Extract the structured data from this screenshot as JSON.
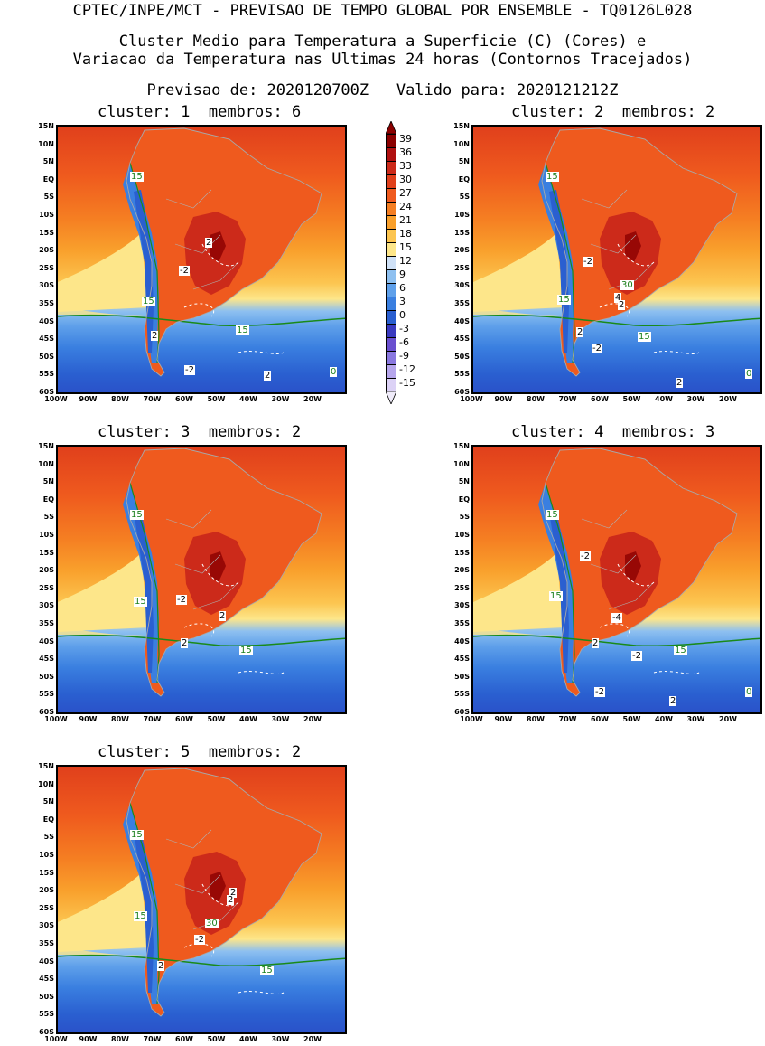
{
  "header": {
    "line1": "CPTEC/INPE/MCT - PREVISAO DE TEMPO GLOBAL POR ENSEMBLE - TQ0126L028",
    "line2": "Cluster Medio para Temperatura a Superficie (C) (Cores) e",
    "line3": "Variacao da Temperatura nas Ultimas 24 horas (Contornos Tracejados)",
    "line4": "Previsao de: 2020120700Z   Valido para: 2020121212Z"
  },
  "axes": {
    "lat_labels": [
      "15N",
      "10N",
      "5N",
      "EQ",
      "5S",
      "10S",
      "15S",
      "20S",
      "25S",
      "30S",
      "35S",
      "40S",
      "45S",
      "50S",
      "55S",
      "60S"
    ],
    "lon_labels": [
      "100W",
      "90W",
      "80W",
      "70W",
      "60W",
      "50W",
      "40W",
      "30W",
      "20W"
    ]
  },
  "colorbar": {
    "labels": [
      "39",
      "36",
      "33",
      "30",
      "27",
      "24",
      "21",
      "18",
      "15",
      "12",
      "9",
      "6",
      "3",
      "0",
      "-3",
      "-6",
      "-9",
      "-12",
      "-15"
    ],
    "colors": [
      "#8b0000",
      "#b01010",
      "#cc2a1a",
      "#e0401c",
      "#ef5a1e",
      "#f57e22",
      "#f9a02c",
      "#fcc550",
      "#fde68a",
      "#cfe1f7",
      "#8ec0f0",
      "#5fa0ea",
      "#3a7fe0",
      "#2a5fd0",
      "#3a3ac0",
      "#6a50d0",
      "#8a78e0",
      "#b6a6ec",
      "#dcd2f6"
    ],
    "arrow_top": "#8b0000",
    "arrow_bottom": "#f0ecfa"
  },
  "panels": [
    {
      "cluster_label": "cluster: 1",
      "membros_label": "membros: 6",
      "green_labels": [
        "15",
        "15",
        "15",
        "0"
      ],
      "white_labels": [
        "2",
        "-2",
        "2",
        "-2",
        "2"
      ]
    },
    {
      "cluster_label": "cluster: 2",
      "membros_label": "membros: 2",
      "green_labels": [
        "15",
        "15",
        "15",
        "30",
        "0"
      ],
      "white_labels": [
        "-2",
        "4",
        "2",
        "2",
        "-2",
        "2"
      ]
    },
    {
      "cluster_label": "cluster: 3",
      "membros_label": "membros: 2",
      "green_labels": [
        "15",
        "15",
        "15"
      ],
      "white_labels": [
        "-2",
        "2",
        "2"
      ]
    },
    {
      "cluster_label": "cluster: 4",
      "membros_label": "membros: 3",
      "green_labels": [
        "15",
        "15",
        "15",
        "0"
      ],
      "white_labels": [
        "-2",
        "-4",
        "2",
        "-2",
        "-2",
        "2"
      ]
    },
    {
      "cluster_label": "cluster: 5",
      "membros_label": "membros: 2",
      "green_labels": [
        "15",
        "15",
        "15",
        "30"
      ],
      "white_labels": [
        "2",
        "2",
        "-2",
        "2"
      ]
    }
  ]
}
